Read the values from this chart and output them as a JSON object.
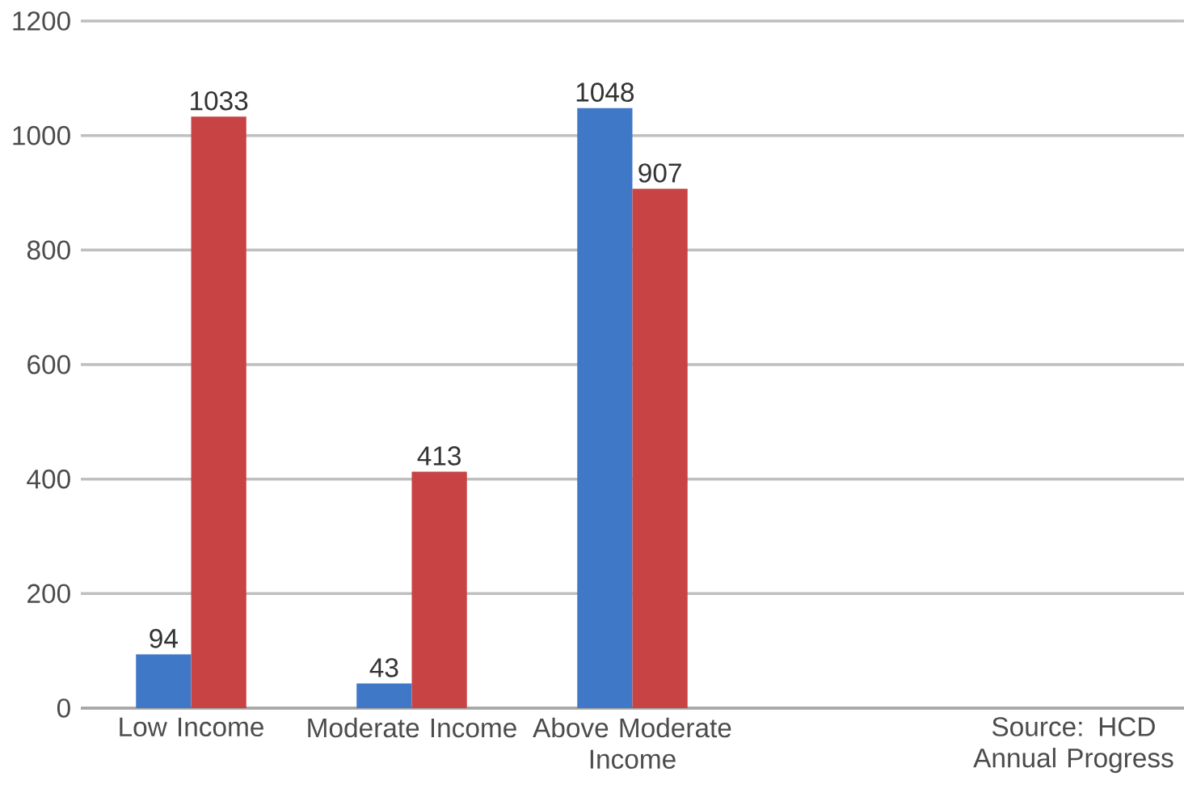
{
  "chart_data": {
    "type": "bar",
    "categories": [
      "Low Income",
      "Moderate Income",
      "Above Moderate Income"
    ],
    "series": [
      {
        "color": "#3f78c6",
        "values": [
          94,
          43,
          1048
        ]
      },
      {
        "color": "#c84444",
        "values": [
          1033,
          413,
          907
        ]
      }
    ],
    "ylim": [
      0,
      1200
    ],
    "yticks": [
      0,
      200,
      400,
      600,
      800,
      1000,
      1200
    ],
    "grid": "y",
    "data_labels": true,
    "annotations": [
      "Source:  HCD Annual Progress"
    ]
  }
}
